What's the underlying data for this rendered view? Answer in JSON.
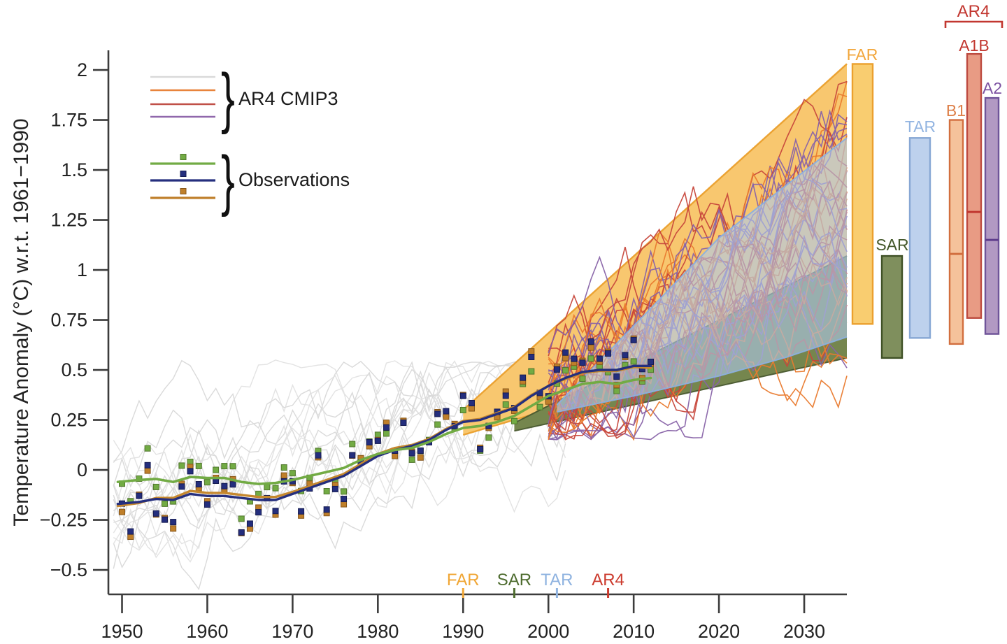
{
  "legend": {
    "brace": "}",
    "ar4_cmip3_label": "AR4 CMIP3",
    "observations_label": "Observations",
    "model_line_colors": [
      "#D9D9D9",
      "#E8843C",
      "#C05048",
      "#9068AC"
    ],
    "obs_items": [
      {
        "name": "series-green",
        "color": "#72AB44",
        "marker_edge": "#50762C"
      },
      {
        "name": "series-navy",
        "color": "#252F7E",
        "marker_edge": "#161C52"
      },
      {
        "name": "series-orange",
        "color": "#BF7F2A",
        "marker_edge": "#86561A"
      }
    ]
  },
  "chart_data": {
    "type": "line",
    "title": "",
    "xlabel": "",
    "ylabel": "Temperature Anomaly (°C) w.r.t. 1961−1990",
    "xlim": [
      1948.4,
      2035
    ],
    "ylim": [
      -0.622,
      2.098
    ],
    "grid": false,
    "x_ticks": [
      "1950",
      "1960",
      "1970",
      "1980",
      "1990",
      "2000",
      "2010",
      "2020",
      "2030"
    ],
    "x_tick_years": [
      1950,
      1960,
      1970,
      1980,
      1990,
      2000,
      2010,
      2020,
      2030
    ],
    "y_ticks": [
      "2",
      "1.75",
      "1.5",
      "1.25",
      "1",
      "0.75",
      "0.5",
      "0.25",
      "0",
      "−0.25",
      "−0.5"
    ],
    "y_tick_values": [
      2,
      1.75,
      1.5,
      1.25,
      1,
      0.75,
      0.5,
      0.25,
      0,
      -0.25,
      -0.5
    ],
    "assessment_markers": [
      {
        "label": "FAR",
        "year": 1990,
        "color": "#F0A635"
      },
      {
        "label": "SAR",
        "year": 1996,
        "color": "#4E6C2F"
      },
      {
        "label": "TAR",
        "year": 2001,
        "color": "#8FB3E0"
      },
      {
        "label": "AR4",
        "year": 2007,
        "color": "#CC3B2E"
      }
    ],
    "projection_bands": [
      {
        "name": "FAR",
        "fill": "#F8C76F",
        "edge": "#EA9F2C",
        "opacity": 1,
        "edge_width": 2.4,
        "top": [
          [
            1990,
            0.3
          ],
          [
            2035,
            2.03
          ]
        ],
        "bottom": [
          [
            1990,
            0.175
          ],
          [
            2035,
            0.74
          ]
        ]
      },
      {
        "name": "SAR",
        "fill": "#75864E",
        "edge": "#49592F",
        "opacity": 1,
        "edge_width": 2,
        "top": [
          [
            1996,
            0.235
          ],
          [
            2035,
            1.07
          ]
        ],
        "bottom": [
          [
            1996,
            0.195
          ],
          [
            2035,
            0.56
          ]
        ]
      },
      {
        "name": "TAR",
        "fill": "#AFC8EA",
        "edge": "#8CB0DE",
        "opacity": 0.62,
        "edge_width": 2,
        "top": [
          [
            2001,
            0.325
          ],
          [
            2010,
            0.72
          ],
          [
            2020,
            1.16
          ],
          [
            2035,
            1.66
          ]
        ],
        "bottom": [
          [
            2001,
            0.29
          ],
          [
            2010,
            0.37
          ],
          [
            2020,
            0.47
          ],
          [
            2028,
            0.565
          ],
          [
            2035,
            0.665
          ]
        ]
      }
    ],
    "range_bars": [
      {
        "label": "FAR",
        "range": [
          0.73,
          2.03
        ],
        "median": null,
        "fill": "#F9C964",
        "edge": "#EBA02E",
        "label_color": "#F2A63B"
      },
      {
        "label": "SAR",
        "range": [
          0.56,
          1.07
        ],
        "median": null,
        "fill": "#74854F",
        "edge": "#3F5126",
        "label_color": "#44582B"
      },
      {
        "label": "TAR",
        "range": [
          0.66,
          1.66
        ],
        "median": null,
        "fill": "#B7CDEC",
        "edge": "#87A7D4",
        "label_color": "#92B4E1"
      },
      {
        "label": "B1",
        "range": [
          0.63,
          1.75
        ],
        "median": 1.08,
        "fill": "#F4BD92",
        "edge": "#D26F3F",
        "label_color": "#DD7F48",
        "median_color": "#D26F3F"
      },
      {
        "label": "A1B",
        "range": [
          0.76,
          2.08
        ],
        "median": 1.29,
        "fill": "#E69379",
        "edge": "#BD4B40",
        "label_color": "#C23730",
        "median_color": "#C13730"
      },
      {
        "label": "A2",
        "range": [
          0.68,
          1.86
        ],
        "median": 1.15,
        "fill": "#AB90BE",
        "edge": "#6F5499",
        "label_color": "#7C52A1",
        "median_color": "#5F3D8C"
      }
    ],
    "ar4_bracket": {
      "label": "AR4",
      "color": "#C23730",
      "over_bars": [
        "B1",
        "A1B",
        "A2"
      ]
    },
    "observations": {
      "start_year": 1950,
      "end_year": 2012,
      "series": [
        {
          "name": "green",
          "color": "#72AB44",
          "marker_fill": "#72AB44",
          "marker_edge": "#50762C",
          "smooth": [
            [
              1949.5,
              -0.06
            ],
            [
              1952,
              -0.05
            ],
            [
              1954,
              -0.045
            ],
            [
              1956,
              -0.06
            ],
            [
              1958,
              -0.035
            ],
            [
              1960,
              -0.04
            ],
            [
              1962,
              -0.04
            ],
            [
              1964,
              -0.06
            ],
            [
              1966,
              -0.07
            ],
            [
              1968,
              -0.065
            ],
            [
              1970,
              -0.05
            ],
            [
              1972,
              -0.03
            ],
            [
              1974,
              -0.01
            ],
            [
              1976,
              0.01
            ],
            [
              1978,
              0.05
            ],
            [
              1980,
              0.08
            ],
            [
              1982,
              0.1
            ],
            [
              1984,
              0.11
            ],
            [
              1986,
              0.14
            ],
            [
              1988,
              0.18
            ],
            [
              1990,
              0.21
            ],
            [
              1992,
              0.22
            ],
            [
              1994,
              0.24
            ],
            [
              1996,
              0.27
            ],
            [
              1998,
              0.32
            ],
            [
              2000,
              0.37
            ],
            [
              2002,
              0.4
            ],
            [
              2004,
              0.43
            ],
            [
              2006,
              0.44
            ],
            [
              2008,
              0.43
            ],
            [
              2010,
              0.45
            ],
            [
              2012,
              0.46
            ]
          ]
        },
        {
          "name": "navy",
          "color": "#252F7E",
          "marker_fill": "#242E7D",
          "marker_edge": "#161C52",
          "smooth": [
            [
              1949.5,
              -0.17
            ],
            [
              1952,
              -0.16
            ],
            [
              1954,
              -0.145
            ],
            [
              1956,
              -0.15
            ],
            [
              1958,
              -0.12
            ],
            [
              1960,
              -0.13
            ],
            [
              1962,
              -0.13
            ],
            [
              1964,
              -0.14
            ],
            [
              1966,
              -0.15
            ],
            [
              1968,
              -0.15
            ],
            [
              1970,
              -0.12
            ],
            [
              1972,
              -0.09
            ],
            [
              1974,
              -0.06
            ],
            [
              1976,
              -0.03
            ],
            [
              1978,
              0.02
            ],
            [
              1980,
              0.07
            ],
            [
              1982,
              0.1
            ],
            [
              1984,
              0.12
            ],
            [
              1986,
              0.15
            ],
            [
              1988,
              0.2
            ],
            [
              1990,
              0.24
            ],
            [
              1992,
              0.25
            ],
            [
              1994,
              0.28
            ],
            [
              1996,
              0.31
            ],
            [
              1998,
              0.37
            ],
            [
              2000,
              0.42
            ],
            [
              2002,
              0.46
            ],
            [
              2004,
              0.49
            ],
            [
              2006,
              0.5
            ],
            [
              2008,
              0.5
            ],
            [
              2010,
              0.52
            ],
            [
              2012,
              0.52
            ]
          ]
        },
        {
          "name": "orange",
          "color": "#C5882E",
          "marker_fill": "#BF7F2A",
          "marker_edge": "#86561A",
          "smooth": [
            [
              1949.5,
              -0.18
            ],
            [
              1952,
              -0.165
            ],
            [
              1954,
              -0.14
            ],
            [
              1956,
              -0.14
            ],
            [
              1958,
              -0.105
            ],
            [
              1960,
              -0.115
            ],
            [
              1962,
              -0.115
            ],
            [
              1964,
              -0.125
            ],
            [
              1966,
              -0.135
            ],
            [
              1968,
              -0.135
            ],
            [
              1970,
              -0.11
            ],
            [
              1972,
              -0.08
            ],
            [
              1974,
              -0.05
            ],
            [
              1976,
              -0.02
            ],
            [
              1978,
              0.03
            ],
            [
              1980,
              0.08
            ],
            [
              1982,
              0.11
            ],
            [
              1984,
              0.125
            ],
            [
              1986,
              0.155
            ],
            [
              1988,
              0.205
            ],
            [
              1990,
              0.245
            ],
            [
              1992,
              0.255
            ],
            [
              1994,
              0.285
            ],
            [
              1996,
              0.315
            ],
            [
              1998,
              0.375
            ],
            [
              2000,
              0.42
            ],
            [
              2002,
              0.455
            ],
            [
              2004,
              0.485
            ],
            [
              2006,
              0.495
            ],
            [
              2008,
              0.495
            ],
            [
              2010,
              0.515
            ],
            [
              2012,
              0.51
            ]
          ]
        }
      ],
      "annual_offsets": [
        -0.02,
        -0.12,
        0.03,
        0.15,
        -0.05,
        -0.1,
        -0.12,
        0.07,
        0.1,
        0.04,
        -0.02,
        0.06,
        0.04,
        0.08,
        -0.18,
        -0.12,
        -0.04,
        -0.01,
        -0.05,
        0.09,
        0.04,
        -0.09,
        0.01,
        0.12,
        -0.12,
        -0.04,
        -0.13,
        0.09,
        0.02,
        0.07,
        0.09,
        0.12,
        -0.02,
        0.14,
        -0.04,
        -0.05,
        0.01,
        0.09,
        0.08,
        0.02,
        0.11,
        0.08,
        -0.12,
        -0.06,
        0.01,
        0.09,
        -0.02,
        0.12,
        0.2,
        -0.03,
        -0.04,
        0.07,
        0.1,
        0.09,
        0.05,
        0.12,
        0.07,
        0.08,
        -0.05,
        0.08,
        0.12,
        -0.03,
        0.04
      ]
    },
    "model_runs": {
      "historical_color_a": "#E3E3E3",
      "historical_color_b": "#DADADA",
      "historical_count": 17,
      "historical_years": [
        1949,
        2002
      ],
      "scenario_colors": [
        "#E97A2E",
        "#C7473B",
        "#8863A8"
      ],
      "runs_per_color": 14,
      "projection_years": [
        2000,
        2035
      ]
    }
  }
}
